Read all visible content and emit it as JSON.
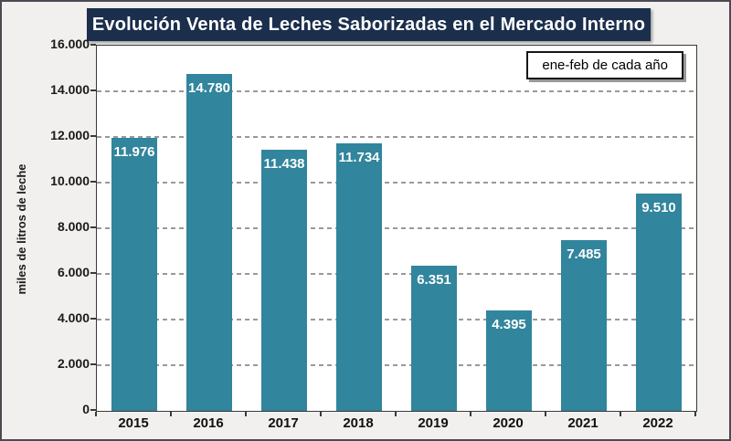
{
  "title": "Evolución Venta de Leches Saborizadas en el Mercado Interno",
  "legend_label": "ene-feb de cada año",
  "colors": {
    "bar": "#31859C",
    "title_background": "#1B2F4D",
    "title_text": "#FFFFFF",
    "canvas_background": "#F1F0EE",
    "plot_background": "#FFFFFF",
    "gridline": "#999999",
    "frame_border": "#4A4A52"
  },
  "chart_data": {
    "type": "bar",
    "title": "Evolución Venta de Leches Saborizadas en el Mercado Interno",
    "categories": [
      "2015",
      "2016",
      "2017",
      "2018",
      "2019",
      "2020",
      "2021",
      "2022"
    ],
    "values": [
      11976,
      14780,
      11438,
      11734,
      6351,
      4395,
      7485,
      9510
    ],
    "value_labels": [
      "11.976",
      "14.780",
      "11.438",
      "11.734",
      "6.351",
      "4.395",
      "7.485",
      "9.510"
    ],
    "xlabel": "",
    "ylabel": "miles de litros de leche",
    "ylim": [
      0,
      16000
    ],
    "ytick_step": 2000,
    "ytick_labels": [
      "0",
      "2.000",
      "4.000",
      "6.000",
      "8.000",
      "10.000",
      "12.000",
      "14.000",
      "16.000"
    ],
    "legend": [
      "ene-feb de cada año"
    ],
    "legend_position": "top-right",
    "grid": "horizontal-dashed",
    "bar_color": "#31859C"
  }
}
